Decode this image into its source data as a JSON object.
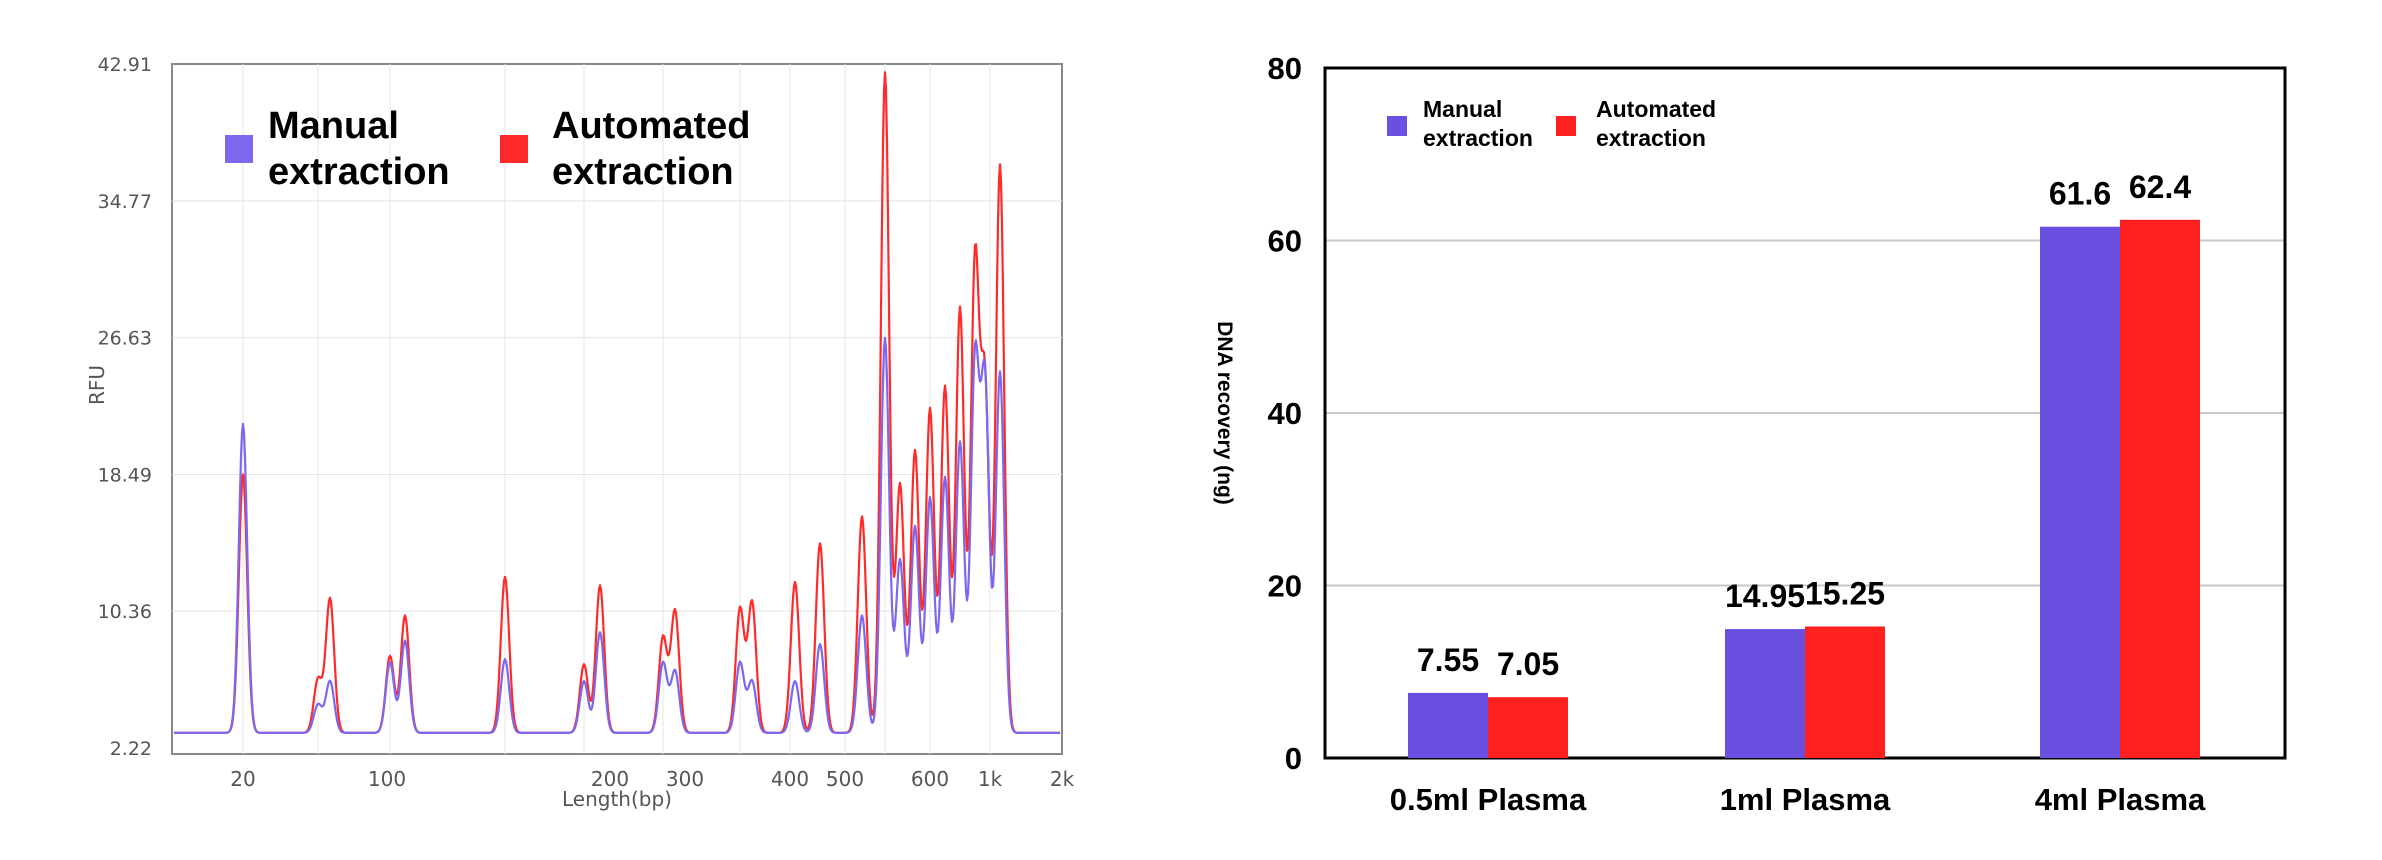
{
  "colors": {
    "manual": "#7B68EE",
    "automated": "#FF2A2A",
    "bar_manual": "#6A4FE0",
    "bar_automated": "#FF2020"
  },
  "left_chart": {
    "ylabel": "RFU",
    "xlabel": "Length(bp)",
    "y_ticks": [
      "42.91",
      "34.77",
      "26.63",
      "18.49",
      "10.36",
      "2.22"
    ],
    "x_ticks": [
      "20",
      "100",
      "200",
      "300",
      "400",
      "500",
      "600",
      "1k",
      "2k"
    ],
    "legend": {
      "manual_line1": "Manual",
      "manual_line2": "extraction",
      "auto_line1": "Automated",
      "auto_line2": "extraction"
    }
  },
  "right_chart": {
    "ylabel": "DNA recovery (ng)",
    "y_ticks": [
      "80",
      "60",
      "40",
      "20",
      "0"
    ],
    "legend": {
      "manual_line1": "Manual",
      "manual_line2": "extraction",
      "auto_line1": "Automated",
      "auto_line2": "extraction"
    }
  },
  "chart_data": [
    {
      "type": "line",
      "xlabel": "Length(bp)",
      "ylabel": "RFU",
      "ylim": [
        2.22,
        42.91
      ],
      "x_tick_labels": [
        "20",
        "100",
        "200",
        "300",
        "400",
        "500",
        "600",
        "1k",
        "2k"
      ],
      "y_tick_labels": [
        "2.22",
        "10.36",
        "18.49",
        "26.63",
        "34.77",
        "42.91"
      ],
      "legend": "top-left",
      "grid": true,
      "series": [
        {
          "name": "Manual extraction",
          "peaks": [
            [
              20,
              20.6
            ],
            [
              45,
              3.9
            ],
            [
              50,
              5.3
            ],
            [
              100,
              6.4
            ],
            [
              110,
              7.7
            ],
            [
              160,
              6.6
            ],
            [
              180,
              5.3
            ],
            [
              200,
              8.2
            ],
            [
              250,
              6.4
            ],
            [
              270,
              5.9
            ],
            [
              330,
              6.4
            ],
            [
              360,
              5.3
            ],
            [
              410,
              5.3
            ],
            [
              450,
              7.5
            ],
            [
              520,
              9.2
            ],
            [
              560,
              25.7
            ],
            [
              580,
              12.5
            ],
            [
              600,
              14.5
            ],
            [
              620,
              16.2
            ],
            [
              650,
              17.4
            ],
            [
              680,
              19.5
            ],
            [
              700,
              24.1
            ],
            [
              780,
              22.8
            ],
            [
              1000,
              23.7
            ]
          ]
        },
        {
          "name": "Automated extraction",
          "peaks": [
            [
              20,
              17.6
            ],
            [
              45,
              5.4
            ],
            [
              50,
              10.2
            ],
            [
              100,
              6.8
            ],
            [
              110,
              9.2
            ],
            [
              160,
              11.5
            ],
            [
              180,
              6.3
            ],
            [
              200,
              11.0
            ],
            [
              250,
              7.9
            ],
            [
              270,
              9.5
            ],
            [
              330,
              9.6
            ],
            [
              360,
              10.0
            ],
            [
              410,
              11.2
            ],
            [
              450,
              13.5
            ],
            [
              520,
              15.1
            ],
            [
              560,
              41.5
            ],
            [
              580,
              17.0
            ],
            [
              600,
              19.0
            ],
            [
              620,
              21.5
            ],
            [
              650,
              22.8
            ],
            [
              680,
              27.5
            ],
            [
              700,
              30.0
            ],
            [
              780,
              22.6
            ],
            [
              1000,
              36.0
            ]
          ]
        }
      ]
    },
    {
      "type": "bar",
      "categories": [
        "0.5ml Plasma",
        "1ml Plasma",
        "4ml Plasma"
      ],
      "ylabel": "DNA recovery (ng)",
      "ylim": [
        0,
        80
      ],
      "legend": "top-left",
      "grid": true,
      "series": [
        {
          "name": "Manual extraction",
          "values": [
            7.55,
            14.95,
            61.6
          ],
          "labels": [
            "7.55",
            "14.95",
            "61.6"
          ]
        },
        {
          "name": "Automated extraction",
          "values": [
            7.05,
            15.25,
            62.4
          ],
          "labels": [
            "7.05",
            "15.25",
            "62.4"
          ]
        }
      ]
    }
  ]
}
